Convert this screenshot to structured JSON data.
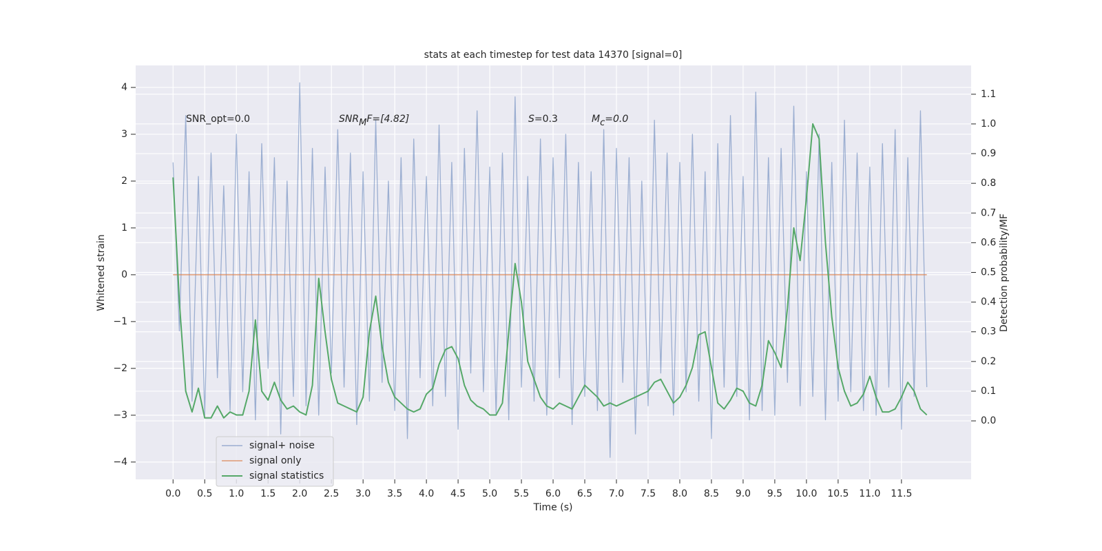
{
  "chart_data": {
    "type": "line",
    "title": "stats at each timestep for test data 14370 [signal=0]",
    "xlabel": "Time (s)",
    "ylabel": "Whitened strain",
    "y2label": "Detection probability/MF",
    "annotations": [
      [
        "SNR_opt=0.0"
      ],
      [
        "SNR",
        "M",
        "F=[4.82]"
      ],
      [
        "S",
        "=0.3"
      ],
      [
        "M",
        "c",
        "=0.0"
      ]
    ],
    "x": [
      0.0,
      0.1,
      0.2,
      0.3,
      0.4,
      0.5,
      0.6,
      0.7,
      0.8,
      0.9,
      1.0,
      1.1,
      1.2,
      1.3,
      1.4,
      1.5,
      1.6,
      1.7,
      1.8,
      1.9,
      2.0,
      2.1,
      2.2,
      2.3,
      2.4,
      2.5,
      2.6,
      2.7,
      2.8,
      2.9,
      3.0,
      3.1,
      3.2,
      3.3,
      3.4,
      3.5,
      3.6,
      3.7,
      3.8,
      3.9,
      4.0,
      4.1,
      4.2,
      4.3,
      4.4,
      4.5,
      4.6,
      4.7,
      4.8,
      4.9,
      5.0,
      5.1,
      5.2,
      5.3,
      5.4,
      5.5,
      5.6,
      5.7,
      5.8,
      5.9,
      6.0,
      6.1,
      6.2,
      6.3,
      6.4,
      6.5,
      6.6,
      6.7,
      6.8,
      6.9,
      7.0,
      7.1,
      7.2,
      7.3,
      7.4,
      7.5,
      7.6,
      7.7,
      7.8,
      7.9,
      8.0,
      8.1,
      8.2,
      8.3,
      8.4,
      8.5,
      8.6,
      8.7,
      8.8,
      8.9,
      9.0,
      9.1,
      9.2,
      9.3,
      9.4,
      9.5,
      9.6,
      9.7,
      9.8,
      9.9,
      10.0,
      10.1,
      10.2,
      10.3,
      10.4,
      10.5,
      10.6,
      10.7,
      10.8,
      10.9,
      11.0,
      11.1,
      11.2,
      11.3,
      11.4,
      11.5,
      11.6,
      11.7,
      11.8,
      11.9
    ],
    "series": [
      {
        "name": "signal+ noise",
        "color": "#4c72b0",
        "values": [
          2.4,
          -1.2,
          3.4,
          -2.7,
          2.1,
          -3.0,
          2.6,
          -2.2,
          1.9,
          -2.9,
          3.0,
          -2.5,
          2.2,
          -3.1,
          2.8,
          -2.0,
          2.5,
          -3.4,
          2.0,
          -2.6,
          4.1,
          -2.8,
          2.7,
          -3.0,
          2.3,
          -2.1,
          3.1,
          -2.4,
          2.6,
          -3.2,
          2.2,
          -2.7,
          3.3,
          -2.3,
          2.0,
          -2.9,
          2.5,
          -3.5,
          2.9,
          -2.2,
          2.1,
          -2.8,
          3.2,
          -2.6,
          2.4,
          -3.3,
          2.7,
          -2.1,
          3.5,
          -2.5,
          2.3,
          -3.0,
          2.6,
          -3.1,
          3.8,
          -2.4,
          2.1,
          -2.7,
          2.9,
          -3.0,
          2.5,
          -2.2,
          3.0,
          -3.2,
          2.4,
          -2.6,
          2.2,
          -2.9,
          3.1,
          -3.9,
          2.7,
          -2.3,
          2.5,
          -3.4,
          2.0,
          -2.8,
          3.3,
          -2.1,
          2.6,
          -3.0,
          2.4,
          -2.5,
          3.0,
          -2.7,
          2.2,
          -3.5,
          2.8,
          -2.4,
          3.4,
          -2.6,
          2.1,
          -3.1,
          3.9,
          -2.9,
          2.5,
          -3.0,
          2.7,
          -2.3,
          3.6,
          -2.8,
          2.2,
          -2.6,
          3.0,
          -3.1,
          2.4,
          -2.7,
          3.3,
          -2.5,
          2.6,
          -2.9,
          2.3,
          -3.0,
          2.8,
          -2.4,
          3.1,
          -3.3,
          2.5,
          -2.6,
          3.5,
          -2.4
        ]
      },
      {
        "name": "signal only",
        "color": "#dd8452",
        "values": [
          0,
          0,
          0,
          0,
          0,
          0,
          0,
          0,
          0,
          0,
          0,
          0,
          0,
          0,
          0,
          0,
          0,
          0,
          0,
          0,
          0,
          0,
          0,
          0,
          0,
          0,
          0,
          0,
          0,
          0,
          0,
          0,
          0,
          0,
          0,
          0,
          0,
          0,
          0,
          0,
          0,
          0,
          0,
          0,
          0,
          0,
          0,
          0,
          0,
          0,
          0,
          0,
          0,
          0,
          0,
          0,
          0,
          0,
          0,
          0,
          0,
          0,
          0,
          0,
          0,
          0,
          0,
          0,
          0,
          0,
          0,
          0,
          0,
          0,
          0,
          0,
          0,
          0,
          0,
          0,
          0,
          0,
          0,
          0,
          0,
          0,
          0,
          0,
          0,
          0,
          0,
          0,
          0,
          0,
          0,
          0,
          0,
          0,
          0,
          0,
          0,
          0,
          0,
          0,
          0,
          0,
          0,
          0,
          0,
          0,
          0,
          0,
          0,
          0,
          0,
          0,
          0,
          0,
          0,
          0
        ]
      },
      {
        "name": "signal statistics",
        "color": "#55a868",
        "axis": "y2",
        "values": [
          0.82,
          0.4,
          0.1,
          0.03,
          0.11,
          0.01,
          0.01,
          0.05,
          0.01,
          0.03,
          0.02,
          0.02,
          0.1,
          0.34,
          0.1,
          0.07,
          0.13,
          0.07,
          0.04,
          0.05,
          0.03,
          0.02,
          0.12,
          0.48,
          0.3,
          0.14,
          0.06,
          0.05,
          0.04,
          0.03,
          0.08,
          0.3,
          0.42,
          0.25,
          0.13,
          0.08,
          0.06,
          0.04,
          0.03,
          0.04,
          0.09,
          0.11,
          0.19,
          0.24,
          0.25,
          0.21,
          0.12,
          0.07,
          0.05,
          0.04,
          0.02,
          0.02,
          0.06,
          0.3,
          0.53,
          0.4,
          0.2,
          0.14,
          0.08,
          0.05,
          0.04,
          0.06,
          0.05,
          0.04,
          0.08,
          0.12,
          0.1,
          0.08,
          0.05,
          0.06,
          0.05,
          0.06,
          0.07,
          0.08,
          0.09,
          0.1,
          0.13,
          0.14,
          0.1,
          0.06,
          0.08,
          0.12,
          0.18,
          0.29,
          0.3,
          0.18,
          0.06,
          0.04,
          0.07,
          0.11,
          0.1,
          0.06,
          0.05,
          0.12,
          0.27,
          0.23,
          0.18,
          0.38,
          0.65,
          0.54,
          0.75,
          1.0,
          0.95,
          0.6,
          0.35,
          0.18,
          0.1,
          0.05,
          0.06,
          0.09,
          0.15,
          0.08,
          0.03,
          0.03,
          0.04,
          0.08,
          0.13,
          0.1,
          0.04,
          0.02
        ]
      }
    ],
    "xlim": [
      -0.59,
      12.6
    ],
    "ylim": [
      -4.37,
      4.47
    ],
    "y2lim": [
      -0.197,
      1.197
    ],
    "xticks": [
      {
        "value": 0,
        "label": "0.0"
      },
      {
        "value": 0.5,
        "label": "0.5"
      },
      {
        "value": 1,
        "label": "1.0"
      },
      {
        "value": 1.5,
        "label": "1.5"
      },
      {
        "value": 2,
        "label": "2.0"
      },
      {
        "value": 2.5,
        "label": "2.5"
      },
      {
        "value": 3,
        "label": "3.0"
      },
      {
        "value": 3.5,
        "label": "3.5"
      },
      {
        "value": 4,
        "label": "4.0"
      },
      {
        "value": 4.5,
        "label": "4.5"
      },
      {
        "value": 5,
        "label": "5.0"
      },
      {
        "value": 5.5,
        "label": "5.5"
      },
      {
        "value": 6,
        "label": "6.0"
      },
      {
        "value": 6.5,
        "label": "6.5"
      },
      {
        "value": 7,
        "label": "7.0"
      },
      {
        "value": 7.5,
        "label": "7.5"
      },
      {
        "value": 8,
        "label": "8.0"
      },
      {
        "value": 8.5,
        "label": "8.5"
      },
      {
        "value": 9,
        "label": "9.0"
      },
      {
        "value": 9.5,
        "label": "9.5"
      },
      {
        "value": 10,
        "label": "10.0"
      },
      {
        "value": 10.5,
        "label": "10.5"
      },
      {
        "value": 11,
        "label": "11.0"
      },
      {
        "value": 11.5,
        "label": "11.5"
      }
    ],
    "yticks": [
      {
        "value": -4,
        "label": "−4"
      },
      {
        "value": -3,
        "label": "−3"
      },
      {
        "value": -2,
        "label": "−2"
      },
      {
        "value": -1,
        "label": "−1"
      },
      0,
      1,
      2,
      3,
      4
    ],
    "y2ticks": [
      {
        "value": 0,
        "label": "0.0"
      },
      {
        "value": 0.1,
        "label": "0.1"
      },
      {
        "value": 0.2,
        "label": "0.2"
      },
      {
        "value": 0.3,
        "label": "0.3"
      },
      {
        "value": 0.4,
        "label": "0.4"
      },
      {
        "value": 0.5,
        "label": "0.5"
      },
      {
        "value": 0.6,
        "label": "0.6"
      },
      {
        "value": 0.7,
        "label": "0.7"
      },
      {
        "value": 0.8,
        "label": "0.8"
      },
      {
        "value": 0.9,
        "label": "0.9"
      },
      {
        "value": 1.0,
        "label": "1.0"
      },
      {
        "value": 1.1,
        "label": "1.1"
      }
    ],
    "grid": true,
    "legend": "lower left"
  }
}
